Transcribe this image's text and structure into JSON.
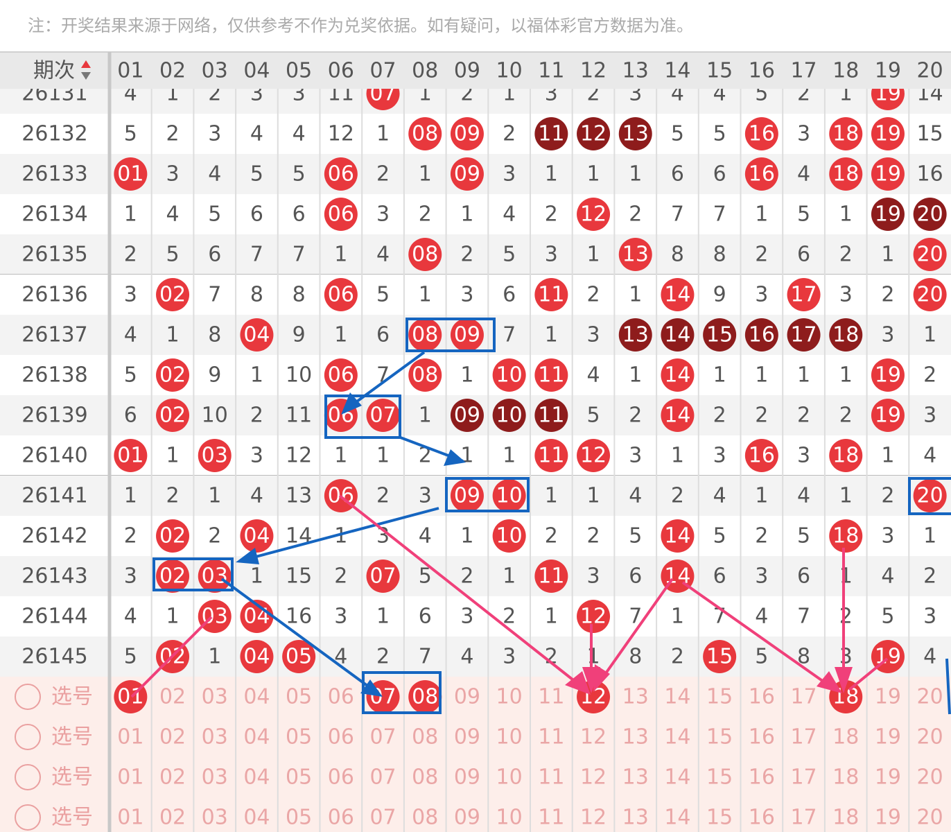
{
  "notice": "注：开奖结果来源于网络，仅供参考不作为兑奖依据。如有疑问，以福体彩官方数据为准。",
  "header": {
    "period": "期次",
    "columns": [
      "01",
      "02",
      "03",
      "04",
      "05",
      "06",
      "07",
      "08",
      "09",
      "10",
      "11",
      "12",
      "13",
      "14",
      "15",
      "16",
      "17",
      "18",
      "19",
      "20"
    ]
  },
  "rows": [
    {
      "period": "26131",
      "cells": [
        "4",
        "1",
        "2",
        "3",
        "3",
        "11",
        "07",
        "1",
        "2",
        "1",
        "3",
        "2",
        "3",
        "4",
        "4",
        "5",
        "2",
        "1",
        "19",
        "14"
      ],
      "style": "00000010000000000010"
    },
    {
      "period": "26132",
      "cells": [
        "5",
        "2",
        "3",
        "4",
        "4",
        "12",
        "1",
        "08",
        "09",
        "2",
        "11",
        "12",
        "13",
        "5",
        "5",
        "16",
        "3",
        "18",
        "19",
        "15"
      ],
      "style": "00000001102220010110"
    },
    {
      "period": "26133",
      "cells": [
        "01",
        "3",
        "4",
        "5",
        "5",
        "06",
        "2",
        "1",
        "09",
        "3",
        "1",
        "1",
        "1",
        "6",
        "6",
        "16",
        "4",
        "18",
        "19",
        "16"
      ],
      "style": "10000100100000010110"
    },
    {
      "period": "26134",
      "cells": [
        "1",
        "4",
        "5",
        "6",
        "6",
        "06",
        "3",
        "2",
        "1",
        "4",
        "2",
        "12",
        "2",
        "7",
        "7",
        "1",
        "5",
        "1",
        "19",
        "20"
      ],
      "style": "00000100000100000022"
    },
    {
      "period": "26135",
      "cells": [
        "2",
        "5",
        "6",
        "7",
        "7",
        "1",
        "4",
        "08",
        "2",
        "5",
        "3",
        "1",
        "13",
        "8",
        "8",
        "2",
        "6",
        "2",
        "1",
        "20"
      ],
      "style": "00000001000010000001"
    },
    {
      "period": "26136",
      "cells": [
        "3",
        "02",
        "7",
        "8",
        "8",
        "06",
        "5",
        "1",
        "3",
        "6",
        "11",
        "2",
        "1",
        "14",
        "9",
        "3",
        "17",
        "3",
        "2",
        "20"
      ],
      "style": "01000100001001001001"
    },
    {
      "period": "26137",
      "cells": [
        "4",
        "1",
        "8",
        "04",
        "9",
        "1",
        "6",
        "08",
        "09",
        "7",
        "1",
        "3",
        "13",
        "14",
        "15",
        "16",
        "17",
        "18",
        "3",
        "1"
      ],
      "style": "00010001100022222200"
    },
    {
      "period": "26138",
      "cells": [
        "5",
        "02",
        "9",
        "1",
        "10",
        "06",
        "7",
        "08",
        "1",
        "10",
        "11",
        "4",
        "1",
        "14",
        "1",
        "1",
        "1",
        "1",
        "19",
        "2"
      ],
      "style": "01000101011001000010"
    },
    {
      "period": "26139",
      "cells": [
        "6",
        "02",
        "10",
        "2",
        "11",
        "06",
        "07",
        "1",
        "09",
        "10",
        "11",
        "5",
        "2",
        "14",
        "2",
        "2",
        "2",
        "2",
        "19",
        "3"
      ],
      "style": "01000110222001000010"
    },
    {
      "period": "26140",
      "cells": [
        "01",
        "1",
        "03",
        "3",
        "12",
        "1",
        "1",
        "2",
        "1",
        "1",
        "11",
        "12",
        "3",
        "1",
        "3",
        "16",
        "3",
        "18",
        "1",
        "4"
      ],
      "style": "10100000001100010100"
    },
    {
      "period": "26141",
      "cells": [
        "1",
        "2",
        "1",
        "4",
        "13",
        "06",
        "2",
        "3",
        "09",
        "10",
        "1",
        "1",
        "4",
        "2",
        "4",
        "1",
        "4",
        "1",
        "2",
        "20"
      ],
      "style": "00000100110000000001"
    },
    {
      "period": "26142",
      "cells": [
        "2",
        "02",
        "2",
        "04",
        "14",
        "1",
        "3",
        "4",
        "1",
        "10",
        "2",
        "2",
        "5",
        "14",
        "5",
        "2",
        "5",
        "18",
        "3",
        "1"
      ],
      "style": "01010000010001000100"
    },
    {
      "period": "26143",
      "cells": [
        "3",
        "02",
        "03",
        "1",
        "15",
        "2",
        "07",
        "5",
        "2",
        "1",
        "11",
        "3",
        "6",
        "14",
        "6",
        "3",
        "6",
        "1",
        "4",
        "2"
      ],
      "style": "01100010001001000000"
    },
    {
      "period": "26144",
      "cells": [
        "4",
        "1",
        "03",
        "04",
        "16",
        "3",
        "1",
        "6",
        "3",
        "2",
        "1",
        "12",
        "7",
        "1",
        "7",
        "4",
        "7",
        "2",
        "5",
        "3"
      ],
      "style": "00110000000100000000"
    },
    {
      "period": "26145",
      "cells": [
        "5",
        "02",
        "1",
        "04",
        "05",
        "4",
        "2",
        "7",
        "4",
        "3",
        "2",
        "1",
        "8",
        "2",
        "15",
        "5",
        "8",
        "3",
        "19",
        "4"
      ],
      "style": "01011000000000100010"
    }
  ],
  "select": {
    "labels": [
      "选号",
      "选号",
      "选号",
      "选号"
    ],
    "picks": [
      "10000011000100000100",
      "00000000000000000000",
      "00000000000000000000",
      "00000000000000000000"
    ]
  }
}
